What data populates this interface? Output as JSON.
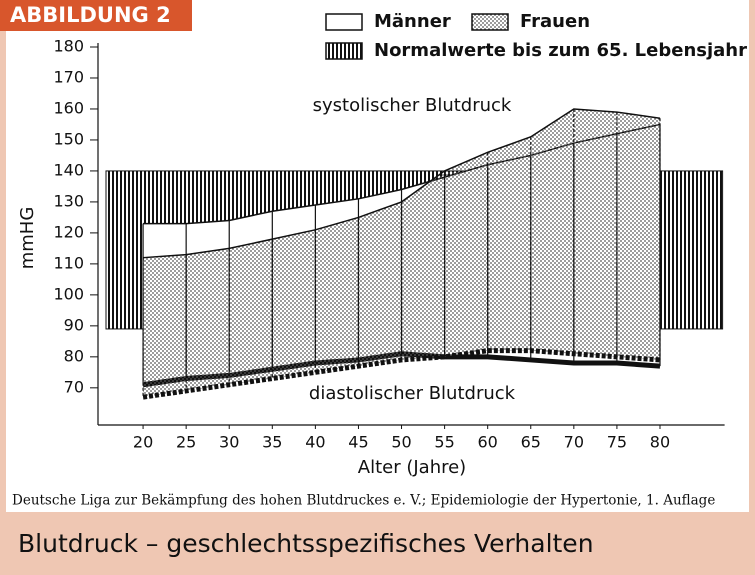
{
  "header": {
    "label": "ABBILDUNG 2"
  },
  "chart_data": {
    "type": "range-area",
    "xlabel": "Alter (Jahre)",
    "ylabel": "mmHG",
    "x": [
      20,
      25,
      30,
      35,
      40,
      45,
      50,
      55,
      60,
      65,
      70,
      75,
      80
    ],
    "xlim": [
      15,
      87.5
    ],
    "xticks": [
      20,
      25,
      30,
      35,
      40,
      45,
      50,
      55,
      60,
      65,
      70,
      75,
      80
    ],
    "ylim": [
      58,
      180
    ],
    "yticks": [
      70,
      80,
      90,
      100,
      110,
      120,
      130,
      140,
      150,
      160,
      170,
      180
    ],
    "band": {
      "name": "Normalwerte bis zum 65. Lebensjahr",
      "low": 89,
      "high": 140,
      "pattern": "vertical-hatch"
    },
    "series": [
      {
        "name": "Männer",
        "color": "#ffffff",
        "pattern": "solid",
        "high": [
          123,
          123,
          124,
          127,
          129,
          131,
          134,
          138,
          142,
          145,
          149,
          152,
          155
        ],
        "low": [
          71,
          73,
          74,
          76,
          78,
          79,
          81,
          80,
          80,
          79,
          78,
          78,
          77
        ]
      },
      {
        "name": "Frauen",
        "color": "#9a9a9a",
        "pattern": "dots",
        "high": [
          112,
          113,
          115,
          118,
          121,
          125,
          130,
          140,
          146,
          151,
          160,
          159,
          157
        ],
        "low": [
          67,
          69,
          71,
          73,
          75,
          77,
          79,
          80,
          82,
          82,
          81,
          80,
          79
        ]
      }
    ],
    "annotations": [
      "systolischer Blutdruck",
      "diastolischer Blutdruck"
    ],
    "source": "Deutsche Liga zur Bekämpfung des hohen Blutdruckes e. V.; Epidemiologie der Hypertonie, 1. Auflage"
  },
  "footer": {
    "title": "Blutdruck – geschlechtsspezifisches Verhalten"
  }
}
